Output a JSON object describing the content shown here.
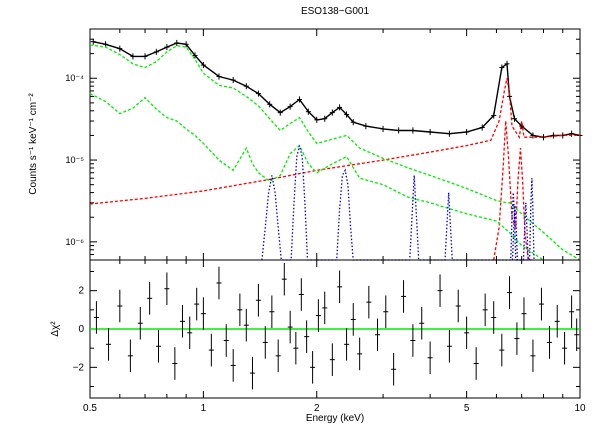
{
  "chart_data": [
    {
      "panel": "spectrum",
      "type": "line",
      "title": "ESO138−G001",
      "xlabel": "",
      "ylabel": "Counts s⁻¹ keV⁻¹ cm⁻²",
      "x_scale": "log",
      "y_scale": "log",
      "xlim": [
        0.5,
        10
      ],
      "ylim": [
        6e-07,
        0.0004
      ],
      "y_ticks": [
        {
          "value": 1e-06,
          "label": "10⁻⁶"
        },
        {
          "value": 1e-05,
          "label": "10⁻⁵"
        },
        {
          "value": 0.0001,
          "label": "10⁻⁴"
        }
      ],
      "series": [
        {
          "color": "#000000",
          "style": "data",
          "x": [
            0.51,
            0.55,
            0.6,
            0.65,
            0.7,
            0.75,
            0.8,
            0.85,
            0.9,
            0.95,
            1.0,
            1.1,
            1.2,
            1.3,
            1.4,
            1.5,
            1.6,
            1.7,
            1.8,
            1.9,
            2.0,
            2.1,
            2.2,
            2.3,
            2.4,
            2.5,
            2.7,
            3.0,
            3.3,
            3.6,
            4.0,
            4.5,
            5.0,
            5.5,
            5.9,
            6.2,
            6.4,
            6.5,
            6.7,
            7.0,
            7.5,
            8.0,
            8.5,
            9.0,
            9.5,
            10.0
          ],
          "y": [
            0.00028,
            0.00026,
            0.00023,
            0.000185,
            0.000185,
            0.00021,
            0.00024,
            0.00027,
            0.00026,
            0.00019,
            0.000145,
            0.000105,
            9.5e-05,
            8e-05,
            6.5e-05,
            4.8e-05,
            3.8e-05,
            4.5e-05,
            5.5e-05,
            3.9e-05,
            3.1e-05,
            3.2e-05,
            3.8e-05,
            4.4e-05,
            3.6e-05,
            2.9e-05,
            2.6e-05,
            2.4e-05,
            2.3e-05,
            2.3e-05,
            2.2e-05,
            2.1e-05,
            2.2e-05,
            2.5e-05,
            3.5e-05,
            0.000135,
            0.00015,
            6e-05,
            3.2e-05,
            2.6e-05,
            2e-05,
            1.9e-05,
            2e-05,
            2e-05,
            2.1e-05,
            2e-05
          ]
        },
        {
          "color": "#ff0000",
          "style": "dashed",
          "x": [
            0.5,
            0.7,
            1.0,
            1.5,
            2.0,
            3.0,
            4.0,
            5.0,
            5.8,
            6.1,
            6.3,
            6.4,
            6.5,
            6.6,
            6.9,
            7.0,
            7.1,
            7.5,
            8.0,
            9.0,
            10.0
          ],
          "y": [
            2.9e-06,
            3.4e-06,
            4.2e-06,
            5.8e-06,
            7.5e-06,
            1e-05,
            1.25e-05,
            1.5e-05,
            1.75e-05,
            3e-05,
            7e-05,
            0.0001,
            6.5e-05,
            2.6e-05,
            1.9e-05,
            3e-05,
            1.9e-05,
            1.9e-05,
            1.9e-05,
            2e-05,
            2e-05
          ]
        },
        {
          "color": "#ff0000",
          "style": "dashed",
          "x": [
            5.9,
            6.1,
            6.25,
            6.35,
            6.45,
            6.6,
            6.75,
            6.85,
            6.95,
            7.05,
            7.15,
            7.3,
            7.45
          ],
          "y": [
            6e-07,
            1.5e-06,
            8e-06,
            3e-05,
            1.2e-05,
            2e-06,
            1.5e-06,
            6e-06,
            1.4e-05,
            5e-06,
            1.2e-06,
            6e-07,
            6e-07
          ]
        },
        {
          "color": "#00ee00",
          "style": "dashed",
          "x": [
            0.5,
            0.55,
            0.6,
            0.65,
            0.7,
            0.75,
            0.8,
            0.85,
            0.9,
            0.95,
            1.0,
            1.1,
            1.2,
            1.3,
            1.4,
            1.5,
            1.6,
            1.7,
            1.8,
            1.9,
            2.0,
            2.2,
            2.4,
            2.6,
            3.0,
            3.5,
            4.0,
            5.0,
            6.0,
            6.4,
            6.5,
            7.0,
            8.0,
            9.0,
            10.0
          ],
          "y": [
            0.000255,
            0.00024,
            0.000195,
            0.00015,
            0.000135,
            0.00016,
            0.00021,
            0.00025,
            0.00024,
            0.00017,
            0.000115,
            8.2e-05,
            7.6e-05,
            6e-05,
            4.6e-05,
            3.2e-05,
            2.3e-05,
            2.8e-05,
            3.3e-05,
            2.2e-05,
            1.6e-05,
            1.8e-05,
            2e-05,
            1.4e-05,
            1.05e-05,
            8e-06,
            6.5e-06,
            4.5e-06,
            3.2e-06,
            3e-06,
            3e-06,
            2.2e-06,
            1.3e-06,
            8e-07,
            6e-07
          ]
        },
        {
          "color": "#00ee00",
          "style": "dashed",
          "x": [
            0.5,
            0.55,
            0.6,
            0.65,
            0.7,
            0.75,
            0.8,
            0.85,
            0.9,
            0.95,
            1.0,
            1.1,
            1.2,
            1.3,
            1.35,
            1.4,
            1.5,
            1.6,
            1.7,
            1.8,
            1.9,
            2.0,
            2.2,
            2.4,
            2.6,
            3.0,
            3.5,
            4.0,
            5.0,
            6.0,
            6.5,
            7.0,
            8.0
          ],
          "y": [
            6.5e-05,
            5.2e-05,
            3.7e-05,
            4.3e-05,
            5.8e-05,
            4.2e-05,
            3.3e-05,
            3e-05,
            2.4e-05,
            2e-05,
            1.6e-05,
            1e-05,
            7.5e-06,
            1.4e-05,
            9e-06,
            7e-06,
            5.5e-06,
            6.5e-06,
            1.2e-05,
            1.5e-05,
            9e-06,
            7e-06,
            9e-06,
            1.1e-05,
            6e-06,
            5e-06,
            3.5e-06,
            3e-06,
            2.2e-06,
            1.8e-06,
            1.3e-06,
            9e-07,
            6e-07
          ]
        },
        {
          "color": "#0000dd",
          "style": "dotted",
          "x": [
            1.43,
            1.46,
            1.49,
            1.52,
            1.55,
            1.58,
            1.61,
            1.71,
            1.74,
            1.77,
            1.8,
            1.83,
            1.86,
            1.89,
            2.26,
            2.3,
            2.34,
            2.38,
            2.42,
            2.46,
            2.5,
            3.53,
            3.58,
            3.63,
            3.68,
            3.73,
            4.38,
            4.43,
            4.48,
            4.53,
            4.58,
            6.55,
            6.6,
            6.65,
            6.7,
            6.75,
            7.35,
            7.4,
            7.45,
            7.5,
            7.55
          ],
          "y": [
            6e-07,
            1.5e-06,
            4e-06,
            6.5e-06,
            4e-06,
            1.5e-06,
            6e-07,
            6e-07,
            3e-06,
            1.1e-05,
            1.5e-05,
            1.1e-05,
            3e-06,
            6e-07,
            6e-07,
            2.5e-06,
            6.5e-06,
            7.5e-06,
            5e-06,
            1.5e-06,
            6e-07,
            6e-07,
            2e-06,
            6.5e-06,
            2e-06,
            6e-07,
            6e-07,
            1.5e-06,
            4e-06,
            1.5e-06,
            6e-07,
            6e-07,
            2e-06,
            4e-06,
            2e-06,
            6e-07,
            6e-07,
            2.5e-06,
            6e-06,
            2.5e-06,
            6e-07
          ]
        },
        {
          "color": "#0000dd",
          "style": "dotted",
          "x": [
            6.62,
            6.67,
            6.72,
            6.77,
            6.82,
            7.08,
            7.13,
            7.18,
            7.23,
            7.28
          ],
          "y": [
            6e-07,
            1.5e-06,
            2.8e-06,
            1.5e-06,
            6e-07,
            6e-07,
            1.5e-06,
            3e-06,
            1.5e-06,
            6e-07
          ]
        }
      ]
    },
    {
      "panel": "residuals",
      "type": "scatter",
      "title": "",
      "xlabel": "Energy (keV)",
      "ylabel": "Δχ²",
      "x_scale": "log",
      "y_scale": "linear",
      "xlim": [
        0.5,
        10
      ],
      "ylim": [
        -3.6,
        3.6
      ],
      "x_ticks": [
        {
          "value": 0.5,
          "label": "0.5"
        },
        {
          "value": 1,
          "label": "1"
        },
        {
          "value": 2,
          "label": "2"
        },
        {
          "value": 5,
          "label": "5"
        },
        {
          "value": 10,
          "label": "10"
        }
      ],
      "y_ticks": [
        {
          "value": -2,
          "label": "−2"
        },
        {
          "value": 0,
          "label": "0"
        },
        {
          "value": 2,
          "label": "2"
        }
      ],
      "zero_line": {
        "value": 0,
        "color": "#00ee00"
      },
      "series": [
        {
          "color": "#000000",
          "style": "errorbars",
          "x": [
            0.52,
            0.56,
            0.6,
            0.64,
            0.68,
            0.72,
            0.76,
            0.8,
            0.84,
            0.88,
            0.92,
            0.96,
            1.0,
            1.05,
            1.1,
            1.15,
            1.2,
            1.25,
            1.3,
            1.35,
            1.4,
            1.46,
            1.52,
            1.58,
            1.64,
            1.7,
            1.76,
            1.82,
            1.88,
            1.95,
            2.02,
            2.1,
            2.2,
            2.3,
            2.4,
            2.5,
            2.6,
            2.75,
            2.9,
            3.05,
            3.2,
            3.4,
            3.6,
            3.8,
            4.0,
            4.25,
            4.5,
            4.75,
            5.0,
            5.3,
            5.6,
            5.9,
            6.2,
            6.5,
            6.8,
            7.1,
            7.5,
            7.9,
            8.3,
            8.7,
            9.1,
            9.5,
            9.8
          ],
          "y": [
            0.6,
            -0.8,
            1.2,
            -1.4,
            0.3,
            1.6,
            -0.9,
            2.1,
            -1.8,
            0.4,
            -0.2,
            1.3,
            0.8,
            -1.1,
            2.4,
            -0.6,
            -1.9,
            1.0,
            0.2,
            -2.3,
            1.5,
            -0.7,
            0.9,
            -1.4,
            2.6,
            0.1,
            -1.0,
            1.8,
            -0.4,
            -2.0,
            0.7,
            1.1,
            -1.6,
            2.2,
            -0.8,
            0.5,
            -1.3,
            1.4,
            -0.3,
            0.9,
            -2.1,
            1.7,
            -0.6,
            0.3,
            -1.5,
            2.0,
            -0.9,
            1.2,
            -0.2,
            -1.8,
            1.0,
            0.6,
            -1.1,
            1.9,
            -0.5,
            0.8,
            -1.4,
            1.3,
            -0.7,
            0.4,
            -1.0,
            0.9,
            -0.3
          ],
          "err": 0.85
        }
      ]
    }
  ]
}
